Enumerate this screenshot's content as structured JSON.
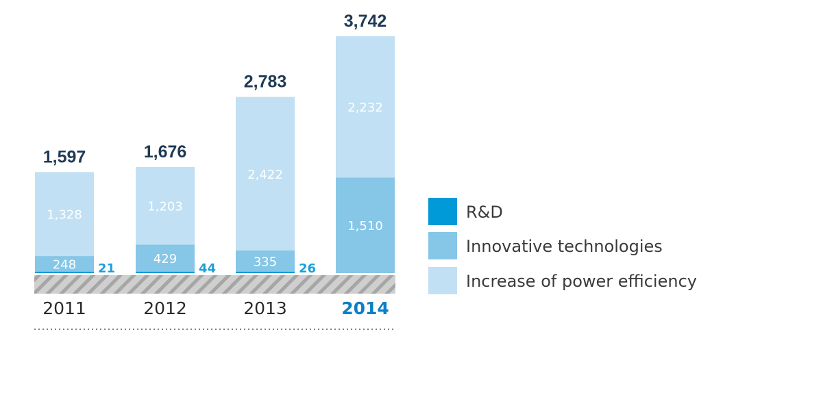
{
  "chart_data": {
    "type": "bar",
    "categories": [
      "2011",
      "2012",
      "2013",
      "2014"
    ],
    "highlight_category": "2014",
    "totals": [
      1597,
      1676,
      2783,
      3742
    ],
    "total_labels": [
      "1,597",
      "1,676",
      "2,783",
      "3,742"
    ],
    "series": [
      {
        "name": "R&D",
        "color": "#009ad8",
        "values": [
          21,
          44,
          26,
          0
        ],
        "labels": [
          "21",
          "44",
          "26",
          ""
        ]
      },
      {
        "name": "Innovative technologies",
        "color": "#86c6e6",
        "values": [
          248,
          429,
          335,
          1510
        ],
        "labels": [
          "248",
          "429",
          "335",
          "1,510"
        ]
      },
      {
        "name": "Increase of power efficiency",
        "color": "#c1e0f3",
        "values": [
          1328,
          1203,
          2422,
          2232
        ],
        "labels": [
          "1,328",
          "1,203",
          "2,422",
          "2,232"
        ]
      }
    ],
    "ylim": [
      0,
      3742
    ],
    "legend_position": "right",
    "title": "",
    "xlabel": "",
    "ylabel": ""
  }
}
